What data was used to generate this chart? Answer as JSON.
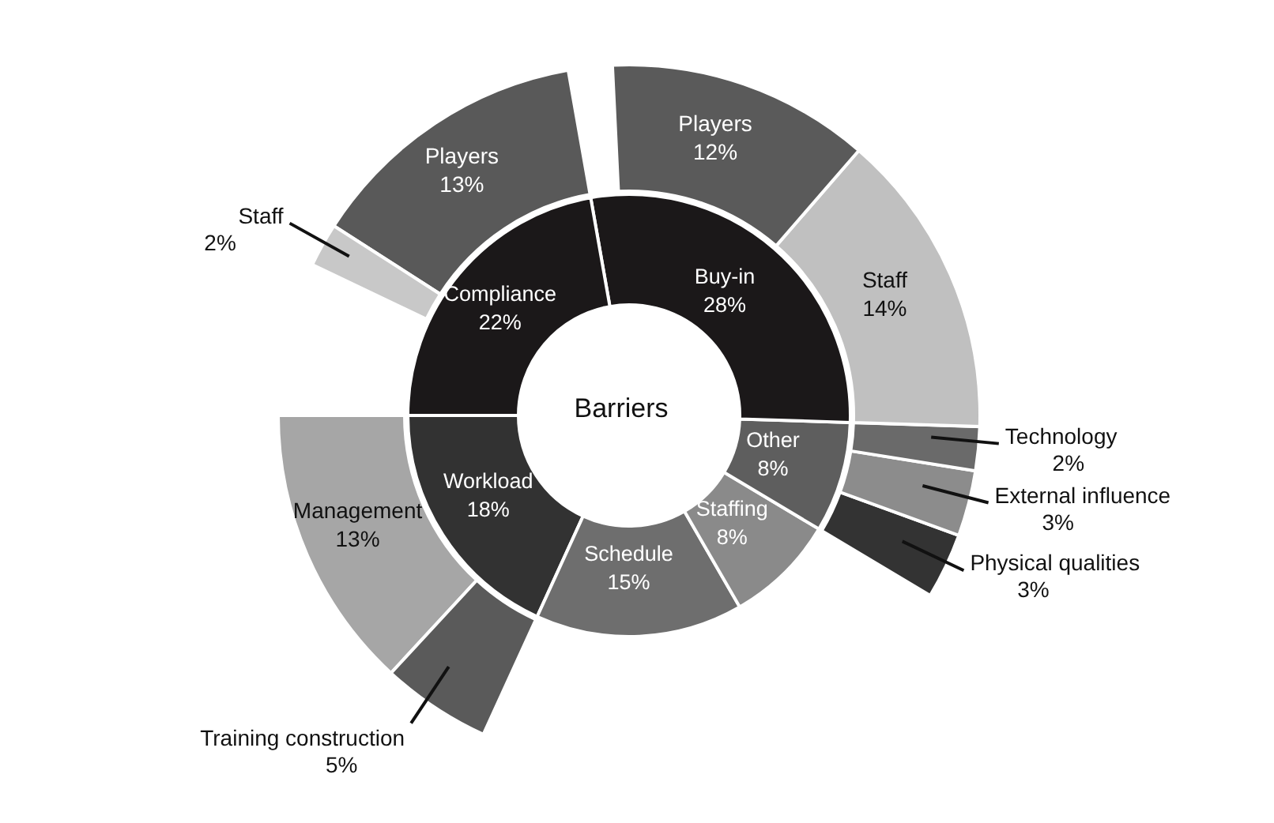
{
  "chart_data": [
    {
      "type": "donut",
      "title": "Barriers",
      "categories": [
        "Workload",
        "Schedule",
        "Staffing",
        "Other",
        "Buy-in",
        "Compliance"
      ],
      "values": [
        18,
        15,
        8,
        8,
        28,
        22
      ],
      "colors": [
        "#323232",
        "#6e6e6e",
        "#8a8a8a",
        "#5e5e5e",
        "#1b1819",
        "#1b1819"
      ],
      "value_labels": [
        "18%",
        "15%",
        "8%",
        "8%",
        "28%",
        "22%"
      ]
    },
    {
      "type": "donut",
      "categories": [
        "Management",
        "Training construction",
        null,
        null,
        null,
        "Physical qualities",
        "External influence",
        "Technology",
        null,
        "Staff",
        "Players",
        null,
        "Players",
        "Staff"
      ],
      "values": [
        13,
        5,
        null,
        null,
        null,
        3,
        3,
        2,
        null,
        14,
        12,
        null,
        13,
        2
      ],
      "colors": [
        "#a6a6a6",
        "#5a5a5a",
        null,
        null,
        null,
        "#333333",
        "#8c8c8c",
        "#6a6a6a",
        null,
        "#c0c0c0",
        "#5a5a5a",
        null,
        "#595959",
        "#c8c8c8"
      ],
      "value_labels": [
        "13%",
        "5%",
        null,
        null,
        null,
        "3%",
        "3%",
        "2%",
        null,
        "14%",
        "12%",
        null,
        "13%",
        "2%"
      ]
    }
  ]
}
